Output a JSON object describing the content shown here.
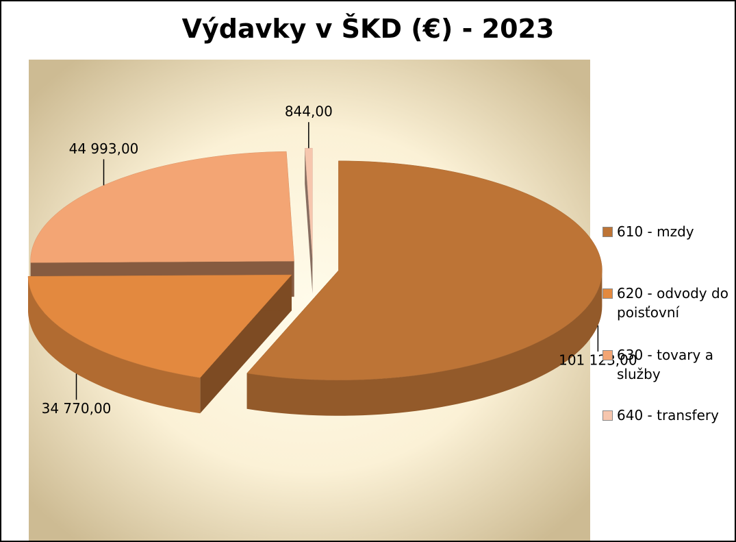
{
  "chart_data": {
    "type": "pie3d",
    "title": "Výdavky v ŠKD (€) - 2023",
    "categories": [
      "610 - mzdy",
      "620 - odvody do poisťovní",
      "630 - tovary a služby",
      "640 - transfery"
    ],
    "values": [
      101123,
      34770,
      44993,
      844
    ],
    "value_labels": [
      "101 123,00",
      "34 770,00",
      "44 993,00",
      "844,00"
    ],
    "colors": [
      "#bd7436",
      "#e3893f",
      "#f3a574",
      "#f6c6ae"
    ],
    "legend": "right"
  }
}
